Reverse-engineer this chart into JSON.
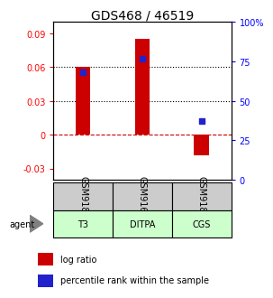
{
  "title": "GDS468 / 46519",
  "samples": [
    "GSM9183",
    "GSM9163",
    "GSM9188"
  ],
  "agents": [
    "T3",
    "DITPA",
    "CGS"
  ],
  "log_ratios": [
    0.06,
    0.085,
    -0.018
  ],
  "percentile_ranks": [
    0.68,
    0.77,
    0.37
  ],
  "ylim": [
    -0.04,
    0.1
  ],
  "yticks_left": [
    -0.03,
    0.0,
    0.03,
    0.06,
    0.09
  ],
  "yticks_left_labels": [
    "-0.03",
    "0",
    "0.03",
    "0.06",
    "0.09"
  ],
  "yticks_right_pct": [
    0,
    25,
    50,
    75,
    100
  ],
  "bar_color": "#cc0000",
  "dot_color": "#2222cc",
  "agent_bg_light": "#ccffcc",
  "agent_bg_mid": "#aaddaa",
  "sample_bg_color": "#cccccc",
  "zero_line_color": "#cc0000",
  "grid_color": "#000000",
  "bar_width": 0.25,
  "title_fontsize": 10,
  "tick_fontsize": 7,
  "table_fontsize": 7,
  "legend_fontsize": 7
}
